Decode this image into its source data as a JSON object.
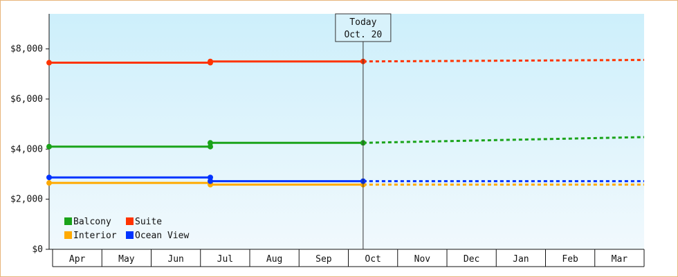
{
  "chart_data": {
    "type": "line",
    "title": "",
    "xlabel": "",
    "ylabel": "",
    "ylim": [
      0,
      9400
    ],
    "yticks": [
      0,
      2000,
      4000,
      6000,
      8000
    ],
    "ytick_labels": [
      "$0",
      "$2,000",
      "$4,000",
      "$6,000",
      "$8,000"
    ],
    "months": [
      "Apr",
      "May",
      "Jun",
      "Jul",
      "Aug",
      "Sep",
      "Oct",
      "Nov",
      "Dec",
      "Jan",
      "Feb",
      "Mar"
    ],
    "grid": false,
    "legend_placement": "bottom-left",
    "today_marker": {
      "line1": "Today",
      "line2": "Oct. 20",
      "x": 6.3
    },
    "series": [
      {
        "name": "Balcony",
        "color": "#1aa31a",
        "actual": [
          [
            0,
            4100
          ],
          [
            3.2,
            4100
          ],
          [
            3.2,
            4250
          ],
          [
            6.3,
            4250
          ]
        ],
        "projected": [
          [
            6.3,
            4250
          ],
          [
            12,
            4480
          ]
        ]
      },
      {
        "name": "Suite",
        "color": "#ff3300",
        "actual": [
          [
            0,
            7450
          ],
          [
            3.2,
            7450
          ],
          [
            3.2,
            7500
          ],
          [
            6.3,
            7500
          ]
        ],
        "projected": [
          [
            6.3,
            7500
          ],
          [
            12,
            7560
          ]
        ]
      },
      {
        "name": "Interior",
        "color": "#ffaa00",
        "actual": [
          [
            0,
            2650
          ],
          [
            3.2,
            2650
          ],
          [
            3.2,
            2580
          ],
          [
            6.3,
            2580
          ]
        ],
        "projected": [
          [
            6.3,
            2580
          ],
          [
            12,
            2580
          ]
        ]
      },
      {
        "name": "Ocean View",
        "color": "#0033ff",
        "actual": [
          [
            0,
            2870
          ],
          [
            3.2,
            2870
          ],
          [
            3.2,
            2720
          ],
          [
            6.3,
            2720
          ]
        ],
        "projected": [
          [
            6.3,
            2720
          ],
          [
            12,
            2720
          ]
        ]
      }
    ]
  }
}
